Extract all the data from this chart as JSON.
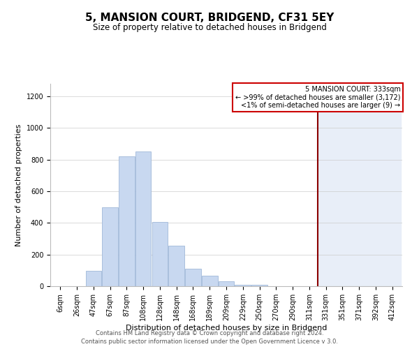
{
  "title": "5, MANSION COURT, BRIDGEND, CF31 5EY",
  "subtitle": "Size of property relative to detached houses in Bridgend",
  "xlabel": "Distribution of detached houses by size in Bridgend",
  "ylabel": "Number of detached properties",
  "bar_labels": [
    "6sqm",
    "26sqm",
    "47sqm",
    "67sqm",
    "87sqm",
    "108sqm",
    "128sqm",
    "148sqm",
    "168sqm",
    "189sqm",
    "209sqm",
    "229sqm",
    "250sqm",
    "270sqm",
    "290sqm",
    "311sqm",
    "331sqm",
    "351sqm",
    "371sqm",
    "392sqm",
    "412sqm"
  ],
  "bar_values": [
    0,
    0,
    95,
    500,
    820,
    850,
    405,
    255,
    110,
    65,
    30,
    10,
    10,
    0,
    0,
    0,
    0,
    0,
    0,
    0,
    0
  ],
  "bar_color": "#c8d8f0",
  "bar_edge_color": "#a0b8d8",
  "vline_idx": 16,
  "vline_color": "#8b0000",
  "ylim": [
    0,
    1280
  ],
  "yticks": [
    0,
    200,
    400,
    600,
    800,
    1000,
    1200
  ],
  "annotation_box_text1": "5 MANSION COURT: 333sqm",
  "annotation_box_text2": "← >99% of detached houses are smaller (3,172)",
  "annotation_box_text3": "<1% of semi-detached houses are larger (9) →",
  "annotation_box_edge": "#cc0000",
  "annotation_box_facecolor": "#ffffff",
  "footer1": "Contains HM Land Registry data © Crown copyright and database right 2024.",
  "footer2": "Contains public sector information licensed under the Open Government Licence v 3.0.",
  "background_color": "#ffffff",
  "grid_color": "#cccccc",
  "title_fontsize": 11,
  "subtitle_fontsize": 8.5,
  "axis_label_fontsize": 8,
  "tick_fontsize": 7,
  "footer_fontsize": 6,
  "right_shade_color": "#e8eef8",
  "annotation_fontsize": 7
}
